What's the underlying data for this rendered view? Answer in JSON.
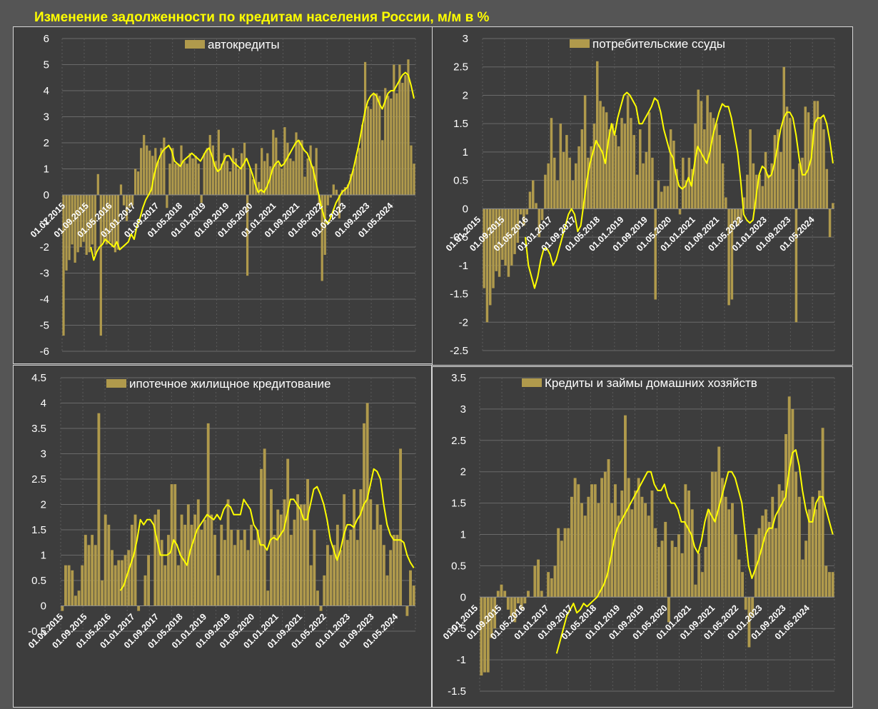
{
  "title": "Изменение задолженности по кредитам населения России, м/м в %",
  "colors": {
    "bar": "#b09a4c",
    "line": "#ffff00",
    "panel_bg": "#3d3d3d",
    "grid": "#6a6a6a",
    "text": "#ffffff"
  },
  "chart_data": [
    {
      "type": "bar",
      "title": "",
      "legend": "автокредиты",
      "legend_position": "top-center",
      "ylim": [
        -6,
        6
      ],
      "yticks": [
        -6,
        -5,
        -4,
        -3,
        -2,
        -1,
        0,
        1,
        2,
        3,
        4,
        5,
        6
      ],
      "xticks": [
        "01.01.2015",
        "01.09.2015",
        "01.05.2016",
        "01.01.2017",
        "01.09.2017",
        "01.05.2018",
        "01.01.2019",
        "01.09.2019",
        "01.05.2020",
        "01.01.2021",
        "01.09.2021",
        "01.05.2022",
        "01.01.2023",
        "01.09.2023",
        "01.05.2024"
      ],
      "series": [
        {
          "name": "автокредиты",
          "kind": "bar",
          "values": [
            -5.4,
            -2.9,
            -2.5,
            -1.9,
            -2.6,
            -2.2,
            -2.0,
            -1.8,
            -2.3,
            -2.2,
            -1.9,
            -2.3,
            0.8,
            -5.4,
            -1.8,
            -1.9,
            -1.8,
            -2.0,
            -2.2,
            -2.1,
            0.4,
            -0.4,
            -1.0,
            -0.5,
            -0.4,
            1.0,
            0.9,
            1.8,
            2.3,
            1.9,
            1.7,
            1.5,
            1.8,
            1.3,
            1.8,
            2.2,
            -0.5,
            1.2,
            1.8,
            1.2,
            1.2,
            1.9,
            1.3,
            1.2,
            1.6,
            1.4,
            1.5,
            1.2,
            -0.3,
            1.6,
            1.8,
            2.3,
            1.9,
            1.3,
            2.5,
            1.2,
            1.6,
            1.3,
            0.9,
            1.8,
            1.4,
            1.0,
            1.6,
            2.0,
            -3.1,
            1.0,
            0.6,
            1.2,
            0.5,
            1.8,
            1.3,
            1.6,
            1.1,
            2.5,
            2.2,
            1.2,
            1.0,
            2.6,
            2.0,
            1.4,
            1.3,
            2.4,
            2.1,
            2.1,
            0.7,
            1.4,
            1.9,
            1.1,
            1.8,
            -0.4,
            -3.3,
            -2.3,
            -0.4,
            -0.1,
            0.4,
            0.2,
            -0.9,
            0.2,
            0.3,
            0.4,
            0.8,
            1.0,
            1.5,
            1.8,
            2.7,
            5.1,
            3.4,
            3.3,
            3.9,
            3.9,
            3.8,
            2.1,
            4.1,
            3.8,
            3.7,
            5.0,
            3.9,
            5.0,
            4.3,
            4.6,
            5.2,
            1.9,
            1.2
          ]
        },
        {
          "name": "",
          "kind": "line",
          "values": [
            -2.0,
            -2.5,
            -2.2,
            -2.0,
            -1.9,
            -1.7,
            -1.8,
            -1.9,
            -2.0,
            -1.8,
            -2.1,
            -2.0,
            -1.9,
            -1.8,
            -1.5,
            -1.7,
            -1.2,
            -0.9,
            -0.5,
            -0.2,
            0.0,
            0.2,
            0.8,
            1.2,
            1.5,
            1.7,
            1.8,
            1.9,
            1.7,
            1.3,
            1.2,
            1.1,
            1.3,
            1.4,
            1.5,
            1.6,
            1.5,
            1.4,
            1.3,
            1.5,
            1.7,
            1.8,
            1.5,
            1.1,
            0.9,
            1.0,
            1.3,
            1.5,
            1.5,
            1.3,
            1.2,
            1.1,
            1.0,
            1.2,
            1.4,
            1.1,
            0.8,
            0.4,
            0.1,
            0.2,
            0.1,
            0.3,
            0.6,
            1.0,
            1.2,
            1.3,
            1.1,
            1.2,
            1.4,
            1.6,
            1.8,
            2.0,
            2.1,
            1.9,
            1.7,
            1.6,
            1.3,
            1.0,
            0.5,
            0.0,
            -0.5,
            -0.9,
            -1.1,
            -0.9,
            -0.6,
            -0.3,
            -0.1,
            0.1,
            0.2,
            0.3,
            0.6,
            1.0,
            1.5,
            2.0,
            2.6,
            3.2,
            3.6,
            3.8,
            3.9,
            3.8,
            3.5,
            3.3,
            3.6,
            3.9,
            4.0,
            4.0,
            4.2,
            4.4,
            4.6,
            4.7,
            4.6,
            4.2,
            3.7
          ]
        }
      ]
    },
    {
      "type": "bar",
      "title": "",
      "legend": "потребительские ссуды",
      "legend_position": "top-center",
      "ylim": [
        -2.5,
        3
      ],
      "yticks": [
        -2.5,
        -2,
        -1.5,
        -1,
        -0.5,
        0,
        0.5,
        1,
        1.5,
        2,
        2.5,
        3
      ],
      "xticks": [
        "01.01.2015",
        "01.09.2015",
        "01.05.2016",
        "01.01.2017",
        "01.09.2017",
        "01.05.2018",
        "01.01.2019",
        "01.09.2019",
        "01.05.2020",
        "01.01.2021",
        "01.09.2021",
        "01.05.2022",
        "01.01.2023",
        "01.09.2023",
        "01.05.2024"
      ],
      "series": [
        {
          "name": "потребительские ссуды",
          "kind": "bar",
          "values": [
            -1.4,
            -2.0,
            -1.7,
            -1.4,
            -1.1,
            -1.2,
            -0.9,
            -1.0,
            -1.2,
            -1.0,
            -0.8,
            -0.6,
            -0.1,
            -0.3,
            -0.1,
            0.3,
            0.5,
            0.1,
            -0.5,
            -0.2,
            0.6,
            0.8,
            1.6,
            0.9,
            0.5,
            1.5,
            1.0,
            1.3,
            0.9,
            0.5,
            0.8,
            1.1,
            1.4,
            2.0,
            0.9,
            1.1,
            1.5,
            2.6,
            1.9,
            1.8,
            1.7,
            1.4,
            1.5,
            1.3,
            1.1,
            1.6,
            1.5,
            2.0,
            1.6,
            1.3,
            0.6,
            1.4,
            0.8,
            1.0,
            1.7,
            0.9,
            -1.6,
            0.5,
            0.3,
            0.4,
            0.4,
            1.4,
            1.2,
            0.7,
            -0.1,
            0.9,
            0.5,
            0.9,
            0.7,
            1.5,
            2.1,
            1.9,
            1.4,
            2.0,
            1.7,
            1.6,
            1.5,
            1.3,
            0.8,
            0.2,
            -1.7,
            -1.6,
            -0.2,
            -0.3,
            -0.2,
            0.2,
            0.6,
            1.4,
            0.8,
            0.6,
            0.6,
            0.4,
            1.0,
            0.6,
            0.8,
            1.3,
            1.4,
            1.0,
            2.5,
            1.8,
            1.6,
            0.7,
            -2.0,
            0.8,
            0.9,
            1.8,
            1.7,
            1.4,
            1.9,
            1.9,
            1.6,
            1.4,
            0.7,
            -0.5,
            0.1
          ]
        },
        {
          "name": "",
          "kind": "line",
          "values": [
            -0.5,
            -1.0,
            -1.2,
            -1.4,
            -1.2,
            -0.9,
            -0.7,
            -0.7,
            -0.8,
            -1.0,
            -0.9,
            -0.7,
            -0.5,
            -0.3,
            -0.1,
            0.0,
            -0.1,
            -0.4,
            -0.3,
            0.1,
            0.5,
            0.8,
            1.0,
            1.2,
            1.1,
            1.0,
            0.8,
            1.2,
            1.5,
            1.3,
            1.6,
            1.8,
            2.0,
            2.05,
            2.0,
            1.9,
            1.8,
            1.5,
            1.5,
            1.6,
            1.7,
            1.8,
            1.95,
            1.9,
            1.7,
            1.4,
            1.2,
            1.0,
            0.9,
            0.6,
            0.4,
            0.35,
            0.4,
            0.55,
            0.4,
            0.8,
            1.1,
            1.0,
            0.9,
            0.8,
            1.0,
            1.3,
            1.5,
            1.7,
            1.85,
            1.8,
            1.8,
            1.6,
            1.3,
            1.0,
            0.5,
            -0.1,
            -0.2,
            -0.25,
            -0.2,
            0.2,
            0.6,
            0.75,
            0.7,
            0.55,
            0.6,
            0.8,
            1.1,
            1.4,
            1.6,
            1.7,
            1.7,
            1.6,
            1.3,
            0.9,
            0.6,
            0.6,
            0.7,
            0.9,
            1.5,
            1.6,
            1.6,
            1.65,
            1.5,
            1.2,
            0.8
          ]
        }
      ]
    },
    {
      "type": "bar",
      "title": "",
      "legend": "ипотечное жилищное кредитование",
      "legend_position": "top-center",
      "ylim": [
        -0.5,
        4.5
      ],
      "yticks": [
        -0.5,
        0,
        0.5,
        1,
        1.5,
        2,
        2.5,
        3,
        3.5,
        4,
        4.5
      ],
      "xticks": [
        "01.01.2015",
        "01.09.2015",
        "01.05.2016",
        "01.01.2017",
        "01.09.2017",
        "01.05.2018",
        "01.01.2019",
        "01.09.2019",
        "01.05.2020",
        "01.01.2021",
        "01.09.2021",
        "01.05.2022",
        "01.01.2023",
        "01.09.2023",
        "01.05.2024"
      ],
      "series": [
        {
          "name": "ипотечное жилищное кредитование",
          "kind": "bar",
          "values": [
            -0.1,
            0.8,
            0.8,
            0.7,
            0.2,
            0.3,
            0.8,
            1.4,
            1.2,
            1.4,
            1.2,
            3.8,
            0.5,
            1.8,
            1.6,
            1.1,
            0.8,
            0.9,
            0.9,
            1.0,
            1.1,
            1.6,
            1.8,
            -0.1,
            0.0,
            0.6,
            1.0,
            0.0,
            1.8,
            1.9,
            1.3,
            0.8,
            1.4,
            2.4,
            2.4,
            0.8,
            1.8,
            1.6,
            2.0,
            1.6,
            1.8,
            2.1,
            1.5,
            1.7,
            3.6,
            1.8,
            1.4,
            0.6,
            1.6,
            1.3,
            2.1,
            1.5,
            1.2,
            1.5,
            1.3,
            1.5,
            1.1,
            1.6,
            1.3,
            1.5,
            2.7,
            3.1,
            0.3,
            2.3,
            1.4,
            1.9,
            1.8,
            2.1,
            2.9,
            1.4,
            1.7,
            2.2,
            2.0,
            2.0,
            2.5,
            0.8,
            1.5,
            0.3,
            -0.1,
            0.6,
            1.2,
            1.0,
            1.2,
            1.6,
            1.1,
            2.2,
            1.3,
            1.5,
            2.3,
            1.3,
            2.3,
            3.6,
            4.0,
            2.1,
            1.5,
            2.0,
            1.6,
            1.2,
            0.6,
            1.1,
            1.4,
            1.4,
            3.1,
            0.0,
            -0.2,
            0.7,
            0.4
          ]
        },
        {
          "name": "",
          "kind": "line",
          "values": [
            0.3,
            0.4,
            0.6,
            0.8,
            1.0,
            1.3,
            1.7,
            1.6,
            1.7,
            1.7,
            1.6,
            1.3,
            1.0,
            1.0,
            1.0,
            1.05,
            1.3,
            1.2,
            1.0,
            0.9,
            0.8,
            1.1,
            1.3,
            1.5,
            1.6,
            1.7,
            1.8,
            1.75,
            1.7,
            1.8,
            1.7,
            1.9,
            2.0,
            1.95,
            1.8,
            1.8,
            1.8,
            2.1,
            2.0,
            1.9,
            1.6,
            1.5,
            1.2,
            1.2,
            1.1,
            1.3,
            1.35,
            1.3,
            1.4,
            1.5,
            1.8,
            2.1,
            2.1,
            2.0,
            1.9,
            1.7,
            1.7,
            2.0,
            2.3,
            2.35,
            2.2,
            2.0,
            1.7,
            1.3,
            1.1,
            0.9,
            1.1,
            1.4,
            1.6,
            1.6,
            1.55,
            1.7,
            1.8,
            2.0,
            2.1,
            2.4,
            2.7,
            2.65,
            2.5,
            2.0,
            1.6,
            1.4,
            1.3,
            1.3,
            1.3,
            1.25,
            1.0,
            0.85,
            0.75
          ]
        }
      ]
    },
    {
      "type": "bar",
      "title": "",
      "legend": "Кредиты и займы домашних хозяйств",
      "legend_position": "top-center",
      "ylim": [
        -1.5,
        3.5
      ],
      "yticks": [
        -1.5,
        -1,
        -0.5,
        0,
        0.5,
        1,
        1.5,
        2,
        2.5,
        3,
        3.5
      ],
      "xticks": [
        "01.01.2015",
        "01.09.2015",
        "01.05.2016",
        "01.01.2017",
        "01.09.2017",
        "01.05.2018",
        "01.01.2019",
        "01.09.2019",
        "01.05.2020",
        "01.01.2021",
        "01.09.2021",
        "01.05.2022",
        "01.01.2023",
        "01.09.2023",
        "01.05.2024"
      ],
      "series": [
        {
          "name": "Кредиты и займы домашних хозяйств",
          "kind": "bar",
          "values": [
            -1.25,
            -1.2,
            -1.2,
            -0.65,
            -0.5,
            0.1,
            0.2,
            0.1,
            -0.2,
            -0.3,
            -0.4,
            -0.1,
            -0.2,
            -0.1,
            0.1,
            0.0,
            0.5,
            0.6,
            0.1,
            0.0,
            0.4,
            0.3,
            0.5,
            1.1,
            0.9,
            1.1,
            1.1,
            1.6,
            1.9,
            1.8,
            1.5,
            1.3,
            1.6,
            1.8,
            1.8,
            1.5,
            1.9,
            2.0,
            2.2,
            1.5,
            1.8,
            1.3,
            1.7,
            2.9,
            1.9,
            1.4,
            1.7,
            1.9,
            1.6,
            1.5,
            1.3,
            1.7,
            1.1,
            0.8,
            0.9,
            1.2,
            -0.4,
            0.9,
            0.8,
            1.0,
            0.7,
            1.8,
            1.7,
            1.4,
            0.2,
            0.7,
            0.4,
            0.8,
            1.4,
            2.0,
            2.0,
            2.4,
            1.9,
            1.6,
            1.4,
            1.5,
            1.0,
            0.6,
            0.4,
            -0.2,
            -0.8,
            -0.3,
            1.0,
            1.1,
            1.3,
            1.4,
            1.2,
            1.6,
            1.1,
            1.8,
            1.7,
            2.6,
            3.2,
            3.0,
            2.0,
            1.6,
            0.6,
            0.9,
            1.4,
            1.6,
            1.4,
            1.7,
            2.7,
            0.5,
            0.4,
            0.4
          ]
        },
        {
          "name": "",
          "kind": "line",
          "values": [
            -0.9,
            -0.7,
            -0.5,
            -0.3,
            -0.2,
            -0.1,
            -0.25,
            -0.2,
            -0.1,
            -0.15,
            -0.1,
            -0.05,
            0.0,
            0.1,
            0.2,
            0.35,
            0.6,
            0.9,
            1.1,
            1.2,
            1.3,
            1.4,
            1.5,
            1.6,
            1.7,
            1.8,
            1.9,
            2.0,
            2.0,
            1.8,
            1.7,
            1.7,
            1.8,
            1.6,
            1.5,
            1.5,
            1.4,
            1.2,
            1.2,
            1.1,
            1.0,
            0.8,
            0.7,
            0.9,
            1.2,
            1.4,
            1.3,
            1.2,
            1.4,
            1.6,
            1.8,
            2.0,
            2.0,
            1.9,
            1.7,
            1.5,
            1.0,
            0.5,
            0.3,
            0.45,
            0.6,
            0.8,
            1.0,
            1.1,
            1.1,
            1.3,
            1.4,
            1.5,
            1.6,
            2.0,
            2.3,
            2.35,
            2.1,
            1.7,
            1.4,
            1.2,
            1.2,
            1.5,
            1.6,
            1.6,
            1.4,
            1.2,
            1.0
          ]
        }
      ]
    }
  ]
}
